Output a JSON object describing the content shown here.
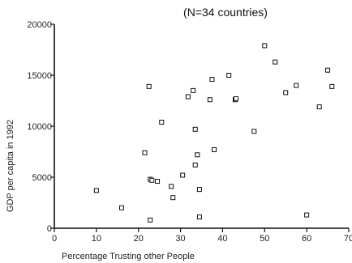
{
  "chart_data": {
    "type": "scatter",
    "title": "(N=34 countries)",
    "xlabel": "Percentage Trusting other People",
    "ylabel": "GDP per  capita in 1992",
    "xlim": [
      0,
      70
    ],
    "ylim": [
      0,
      20000
    ],
    "x_ticks": [
      "0",
      "10",
      "20",
      "30",
      "40",
      "50",
      "60",
      "70"
    ],
    "y_ticks": [
      "0",
      "5000",
      "10000",
      "15000",
      "20000"
    ],
    "x_tick_values": [
      0,
      10,
      20,
      30,
      40,
      50,
      60,
      70
    ],
    "y_tick_values": [
      0,
      5000,
      10000,
      15000,
      20000
    ],
    "grid": false,
    "marker": "hollow-square",
    "series": [
      {
        "points": [
          {
            "x": 10,
            "y": 3700
          },
          {
            "x": 16,
            "y": 2000
          },
          {
            "x": 21.5,
            "y": 7400
          },
          {
            "x": 22.5,
            "y": 13900
          },
          {
            "x": 22.8,
            "y": 4800
          },
          {
            "x": 23.2,
            "y": 4700
          },
          {
            "x": 22.8,
            "y": 800
          },
          {
            "x": 24.5,
            "y": 4600
          },
          {
            "x": 25.5,
            "y": 10400
          },
          {
            "x": 27.8,
            "y": 4100
          },
          {
            "x": 28.2,
            "y": 3000
          },
          {
            "x": 30.5,
            "y": 5200
          },
          {
            "x": 31.8,
            "y": 12900
          },
          {
            "x": 33,
            "y": 13500
          },
          {
            "x": 33.5,
            "y": 9700
          },
          {
            "x": 33.5,
            "y": 6200
          },
          {
            "x": 34,
            "y": 7200
          },
          {
            "x": 34.5,
            "y": 3800
          },
          {
            "x": 34.5,
            "y": 1100
          },
          {
            "x": 37,
            "y": 12600
          },
          {
            "x": 37.5,
            "y": 14600
          },
          {
            "x": 38,
            "y": 7700
          },
          {
            "x": 41.5,
            "y": 15000
          },
          {
            "x": 43,
            "y": 12600
          },
          {
            "x": 43.2,
            "y": 12700
          },
          {
            "x": 47.5,
            "y": 9500
          },
          {
            "x": 50,
            "y": 17900
          },
          {
            "x": 52.5,
            "y": 16300
          },
          {
            "x": 55,
            "y": 13300
          },
          {
            "x": 57.5,
            "y": 14000
          },
          {
            "x": 60,
            "y": 1300
          },
          {
            "x": 63,
            "y": 11900
          },
          {
            "x": 65,
            "y": 15500
          },
          {
            "x": 66,
            "y": 13900
          }
        ]
      }
    ]
  }
}
